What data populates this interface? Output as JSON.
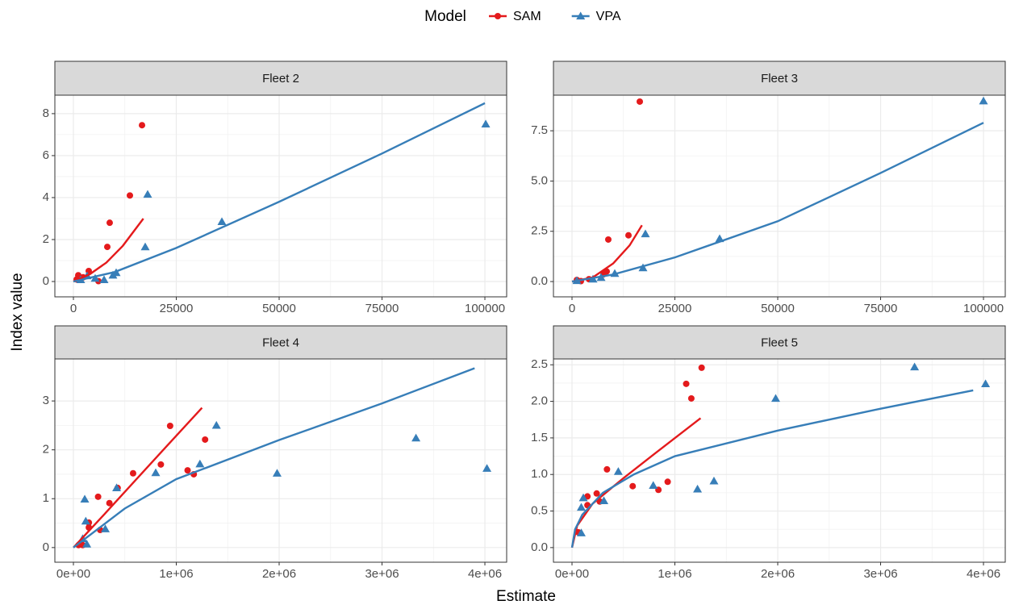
{
  "legend_title": "Model",
  "xlabel": "Estimate",
  "ylabel": "Index value",
  "chart_data": [
    {
      "type": "scatter",
      "title": "Fleet 2",
      "grid": true,
      "xlim": [
        -4510,
        105290
      ],
      "ylim": [
        -0.73,
        8.88
      ],
      "xticks": [
        0,
        25000,
        50000,
        75000,
        100000
      ],
      "yticks": [
        0,
        2,
        4,
        6,
        8
      ],
      "series": [
        {
          "name": "SAM",
          "color": "#e41a1c",
          "shape": "circle",
          "x": [
            784,
            1176,
            2350,
            3725,
            6078,
            8235,
            8820,
            13725,
            16670
          ],
          "values": [
            0.1,
            0.3,
            0.2,
            0.5,
            0.02,
            1.65,
            2.8,
            4.1,
            7.45
          ],
          "fit": {
            "x": [
              0,
              4000,
              8000,
              12000,
              17000
            ],
            "values": [
              0,
              0.35,
              0.9,
              1.7,
              3.0
            ]
          }
        },
        {
          "name": "VPA",
          "color": "#377eb8",
          "shape": "triangle",
          "x": [
            1765,
            3333,
            5290,
            7450,
            9600,
            10390,
            17450,
            18040,
            36080,
            100200
          ],
          "values": [
            0.08,
            0.27,
            0.15,
            0.08,
            0.3,
            0.42,
            1.65,
            4.15,
            2.85,
            7.5
          ],
          "fit": {
            "x": [
              0,
              10000,
              25000,
              50000,
              75000,
              100000
            ],
            "values": [
              0,
              0.45,
              1.6,
              3.8,
              6.1,
              8.5
            ]
          }
        }
      ]
    },
    {
      "type": "scatter",
      "title": "Fleet 3",
      "grid": true,
      "xlim": [
        -4510,
        105290
      ],
      "ylim": [
        -0.76,
        9.27
      ],
      "xticks": [
        0,
        25000,
        50000,
        75000,
        100000
      ],
      "yticks": [
        {
          "value": 0,
          "label": "0.0"
        },
        2.5,
        {
          "value": 5,
          "label": "5.0"
        },
        7.5
      ],
      "series": [
        {
          "name": "SAM",
          "color": "#e41a1c",
          "shape": "circle",
          "x": [
            1176,
            2160,
            4118,
            7650,
            8430,
            8820,
            13725,
            16470
          ],
          "values": [
            0.08,
            0.02,
            0.12,
            0.36,
            0.5,
            2.09,
            2.3,
            8.95
          ],
          "fit": {
            "x": [
              0,
              5000,
              10000,
              14000,
              17000
            ],
            "values": [
              0,
              0.2,
              0.9,
              1.8,
              2.8
            ]
          }
        },
        {
          "name": "VPA",
          "color": "#377eb8",
          "shape": "triangle",
          "x": [
            1176,
            5100,
            7060,
            10390,
            17250,
            17840,
            35880,
            100000
          ],
          "values": [
            0.04,
            0.12,
            0.2,
            0.4,
            0.68,
            2.37,
            2.13,
            8.98
          ],
          "fit": {
            "x": [
              0,
              10000,
              25000,
              50000,
              75000,
              100000
            ],
            "values": [
              0,
              0.35,
              1.2,
              3.0,
              5.4,
              7.9
            ]
          }
        }
      ]
    },
    {
      "type": "scatter",
      "title": "Fleet 4",
      "grid": true,
      "xlim": [
        -180400,
        4211600
      ],
      "ylim": [
        -0.3,
        3.86
      ],
      "xticks": [
        {
          "value": 0,
          "label": "0e+00"
        },
        {
          "value": 1000000,
          "label": "1e+06"
        },
        {
          "value": 2000000,
          "label": "2e+06"
        },
        {
          "value": 3000000,
          "label": "3e+06"
        },
        {
          "value": 4000000,
          "label": "4e+06"
        }
      ],
      "yticks": [
        0,
        1,
        2,
        3
      ],
      "series": [
        {
          "name": "SAM",
          "color": "#e41a1c",
          "shape": "circle",
          "x": [
            50000,
            90000,
            150000,
            150000,
            240000,
            260000,
            350000,
            430000,
            580000,
            850000,
            940000,
            1110000,
            1170000,
            1280000
          ],
          "values": [
            0.05,
            0.05,
            0.51,
            0.41,
            1.04,
            0.36,
            0.91,
            1.22,
            1.52,
            1.7,
            2.49,
            1.58,
            1.5,
            2.21
          ],
          "fit": {
            "x": [
              0,
              300000,
              600000,
              900000,
              1250000
            ],
            "values": [
              0,
              0.68,
              1.37,
              2.06,
              2.86
            ]
          }
        },
        {
          "name": "VPA",
          "color": "#377eb8",
          "shape": "triangle",
          "x": [
            90000,
            110000,
            120000,
            130000,
            310000,
            420000,
            800000,
            1230000,
            1390000,
            1980000,
            3330000,
            4020000
          ],
          "values": [
            0.18,
            0.99,
            0.54,
            0.07,
            0.38,
            1.22,
            1.53,
            1.71,
            2.5,
            1.52,
            2.24,
            1.62
          ],
          "fit": {
            "x": [
              0,
              500000,
              1000000,
              2000000,
              3000000,
              3900000
            ],
            "values": [
              0,
              0.8,
              1.4,
              2.2,
              2.95,
              3.67
            ]
          }
        }
      ]
    },
    {
      "type": "scatter",
      "title": "Fleet 5",
      "grid": true,
      "xlim": [
        -180400,
        4211600
      ],
      "ylim": [
        -0.2,
        2.58
      ],
      "xticks": [
        {
          "value": 0,
          "label": "0e+00"
        },
        {
          "value": 1000000,
          "label": "1e+06"
        },
        {
          "value": 2000000,
          "label": "2e+06"
        },
        {
          "value": 3000000,
          "label": "3e+06"
        },
        {
          "value": 4000000,
          "label": "4e+06"
        }
      ],
      "yticks": [
        {
          "value": 0,
          "label": "0.0"
        },
        0.5,
        {
          "value": 1,
          "label": "1.0"
        },
        1.5,
        {
          "value": 2,
          "label": "2.0"
        },
        2.5
      ],
      "series": [
        {
          "name": "SAM",
          "color": "#e41a1c",
          "shape": "circle",
          "x": [
            60000,
            150000,
            150000,
            240000,
            270000,
            340000,
            590000,
            840000,
            930000,
            1110000,
            1160000,
            1260000
          ],
          "values": [
            0.21,
            0.7,
            0.58,
            0.74,
            0.63,
            1.07,
            0.84,
            0.79,
            0.9,
            2.24,
            2.04,
            2.46
          ],
          "fit": {
            "x": [
              0,
              50000,
              200000,
              500000,
              800000,
              1250000
            ],
            "values": [
              0,
              0.3,
              0.6,
              0.95,
              1.28,
              1.77
            ]
          }
        },
        {
          "name": "VPA",
          "color": "#377eb8",
          "shape": "triangle",
          "x": [
            90000,
            90000,
            110000,
            310000,
            450000,
            790000,
            1220000,
            1380000,
            1980000,
            3330000,
            4020000
          ],
          "values": [
            0.2,
            0.55,
            0.68,
            0.64,
            1.04,
            0.85,
            0.8,
            0.91,
            2.04,
            2.47,
            2.24
          ],
          "fit": {
            "x": [
              0,
              30000,
              100000,
              300000,
              600000,
              1000000,
              2000000,
              3000000,
              3900000
            ],
            "values": [
              0,
              0.25,
              0.45,
              0.75,
              1.0,
              1.25,
              1.6,
              1.9,
              2.15
            ]
          }
        }
      ]
    }
  ]
}
